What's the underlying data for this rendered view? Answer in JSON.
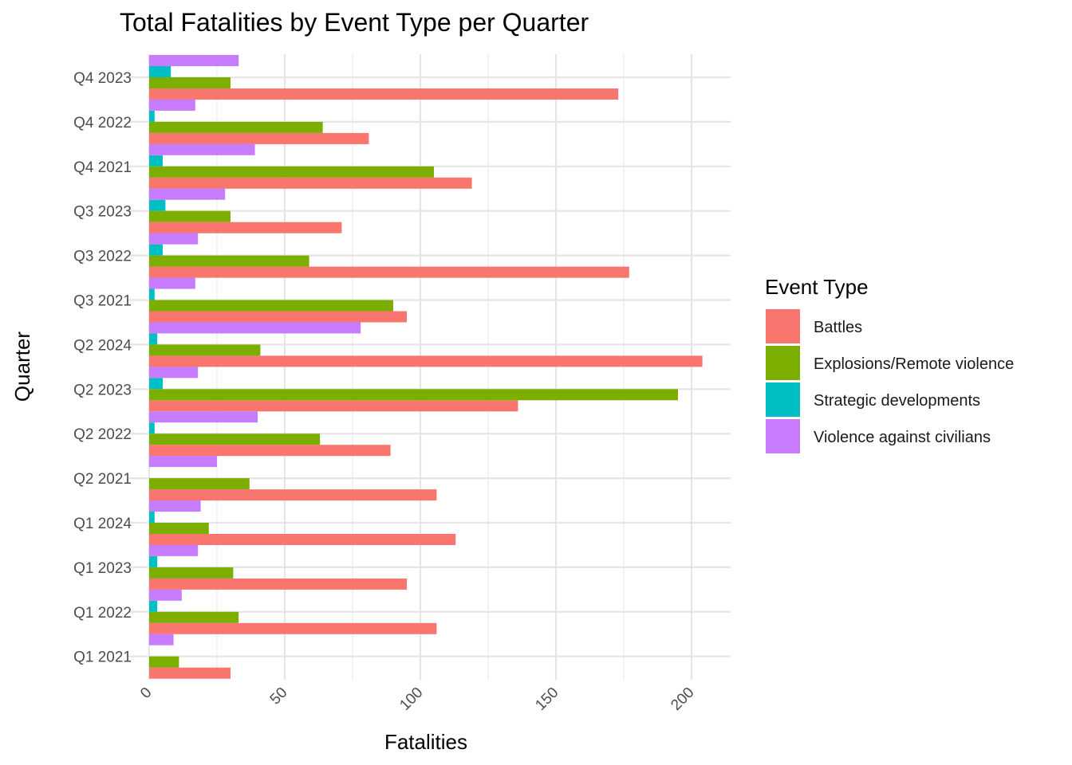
{
  "chart_data": {
    "type": "bar",
    "orientation": "horizontal",
    "title": "Total Fatalities by Event Type per Quarter",
    "xlabel": "Fatalities",
    "ylabel": "Quarter",
    "xlim": [
      0,
      213
    ],
    "x_ticks": [
      "0",
      "50",
      "100",
      "150",
      "200"
    ],
    "tick_rotation": "45 degrees",
    "grid": true,
    "legend_title": "Event Type",
    "legend_position": "right",
    "categories": [
      "Q4 2023",
      "Q4 2022",
      "Q4 2021",
      "Q3 2023",
      "Q3 2022",
      "Q3 2021",
      "Q2 2024",
      "Q2 2023",
      "Q2 2022",
      "Q2 2021",
      "Q1 2024",
      "Q1 2023",
      "Q1 2022",
      "Q1 2021"
    ],
    "series": [
      {
        "name": "Battles",
        "color": "#f8766d",
        "values": [
          173,
          81,
          119,
          71,
          177,
          95,
          204,
          136,
          89,
          106,
          113,
          95,
          106,
          30
        ]
      },
      {
        "name": "Explosions/Remote violence",
        "color": "#7cae00",
        "values": [
          30,
          64,
          105,
          30,
          59,
          90,
          41,
          195,
          63,
          37,
          22,
          31,
          33,
          11
        ]
      },
      {
        "name": "Strategic developments",
        "color": "#00bfc4",
        "values": [
          8,
          2,
          5,
          6,
          5,
          2,
          3,
          5,
          2,
          0,
          2,
          3,
          3,
          0
        ]
      },
      {
        "name": "Violence against civilians",
        "color": "#c77cff",
        "values": [
          33,
          17,
          39,
          28,
          18,
          17,
          78,
          18,
          40,
          25,
          19,
          18,
          12,
          9
        ]
      }
    ]
  }
}
